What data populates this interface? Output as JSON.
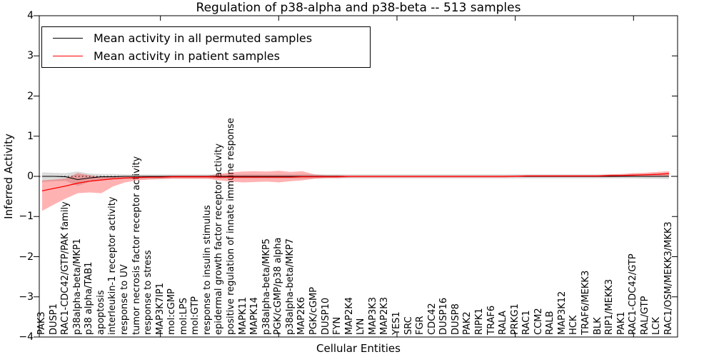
{
  "chart_data": {
    "type": "line",
    "title": "Regulation of p38-alpha and p38-beta -- 513 samples",
    "xlabel": "Cellular Entities",
    "ylabel": "Inferred Activity",
    "ylim": [
      -4,
      4
    ],
    "yticks": [
      4,
      3,
      2,
      1,
      0,
      -1,
      -2,
      -3,
      -4
    ],
    "xtick_indices": [
      10,
      20,
      30,
      40,
      50
    ],
    "grid": false,
    "legend_position": "upper left",
    "zero_line": {
      "y": 0,
      "style": "dotted",
      "color": "#000000"
    },
    "legend": [
      {
        "label": "Mean activity in all permuted samples",
        "color": "#000000"
      },
      {
        "label": "Mean activity in patient samples",
        "color": "#ff0000"
      }
    ],
    "categories": [
      "PAK3",
      "DUSP1",
      "RAC1-CDC42/GTP/PAK family",
      "p38alpha-beta/MKP1",
      "p38 alpha/TAB1",
      "apoptosis",
      "interleukin-1 receptor activity",
      "response to UV",
      "tumor necrosis factor receptor activity",
      "response to stress",
      "MAP3K7IP1",
      "mol:cGMP",
      "mol:LPS",
      "mol:GTP",
      "response to insulin stimulus",
      "epidermal growth factor receptor activity",
      "positive regulation of innate immune response",
      "MAPK11",
      "MAPK14",
      "p38alpha-beta/MKP5",
      "PGK/cGMP/p38 alpha",
      "p38alpha-beta/MKP7",
      "MAP2K6",
      "PGK/cGMP",
      "DUSP10",
      "FYN",
      "MAP2K4",
      "LYN",
      "MAP3K3",
      "MAP2K3",
      "YES1",
      "SRC",
      "FGR",
      "CDC42",
      "DUSP16",
      "DUSP8",
      "PAK2",
      "RIPK1",
      "TRAF6",
      "RALA",
      "PRKG1",
      "RAC1",
      "CCM2",
      "RALB",
      "MAP3K12",
      "HCK",
      "TRAF6/MEKK3",
      "BLK",
      "RIP1/MEKK3",
      "PAK1",
      "RAC1-CDC42/GTP",
      "RAL/GTP",
      "LCK",
      "RAC1/OSM/MEKK3/MKK3"
    ],
    "series": [
      {
        "name": "Mean activity in all permuted samples",
        "color": "#000000",
        "line_width": 1.1,
        "values": [
          0,
          0,
          -0.01,
          -0.08,
          -0.04,
          -0.01,
          -0.01,
          0,
          0,
          0,
          0,
          0,
          0,
          0,
          0,
          0,
          0,
          0,
          0,
          0,
          0,
          0,
          0,
          0,
          0,
          0,
          0,
          0,
          0,
          0,
          0,
          0,
          0,
          0,
          0,
          0,
          0,
          0,
          0,
          0,
          0,
          0,
          0,
          0,
          0,
          0,
          0,
          0,
          0,
          0,
          0,
          0,
          0,
          0
        ],
        "band": {
          "color": "rgba(110,110,110,0.25)",
          "lower": [
            -0.14,
            -0.12,
            -0.11,
            -0.24,
            -0.14,
            -0.09,
            -0.08,
            -0.07,
            -0.06,
            -0.06,
            -0.06,
            -0.05,
            -0.05,
            -0.05,
            -0.05,
            -0.05,
            -0.05,
            -0.05,
            -0.05,
            -0.05,
            -0.05,
            -0.05,
            -0.05,
            -0.05,
            -0.05,
            -0.05,
            -0.05,
            -0.05,
            -0.05,
            -0.05,
            -0.05,
            -0.05,
            -0.05,
            -0.05,
            -0.05,
            -0.05,
            -0.05,
            -0.05,
            -0.05,
            -0.05,
            -0.05,
            -0.05,
            -0.05,
            -0.05,
            -0.05,
            -0.05,
            -0.05,
            -0.05,
            -0.05,
            -0.05,
            -0.05,
            -0.06,
            -0.06,
            -0.07
          ],
          "upper": [
            0.1,
            0.09,
            0.08,
            0.12,
            0.07,
            0.06,
            0.06,
            0.05,
            0.05,
            0.05,
            0.05,
            0.05,
            0.05,
            0.05,
            0.05,
            0.05,
            0.05,
            0.05,
            0.05,
            0.05,
            0.05,
            0.05,
            0.05,
            0.05,
            0.05,
            0.05,
            0.05,
            0.05,
            0.05,
            0.05,
            0.05,
            0.05,
            0.05,
            0.05,
            0.05,
            0.05,
            0.05,
            0.05,
            0.05,
            0.05,
            0.05,
            0.05,
            0.05,
            0.05,
            0.05,
            0.05,
            0.05,
            0.05,
            0.05,
            0.05,
            0.06,
            0.06,
            0.07,
            0.08
          ]
        }
      },
      {
        "name": "Mean activity in patient samples",
        "color": "#ff0000",
        "line_width": 1.3,
        "values": [
          -0.36,
          -0.3,
          -0.24,
          -0.17,
          -0.12,
          -0.09,
          -0.06,
          -0.04,
          -0.03,
          -0.02,
          -0.02,
          -0.01,
          -0.01,
          -0.01,
          -0.01,
          -0.02,
          -0.02,
          -0.02,
          -0.02,
          -0.02,
          -0.02,
          -0.02,
          -0.01,
          -0.01,
          -0.01,
          -0.01,
          0,
          0,
          0,
          0,
          0,
          0,
          0,
          0,
          0,
          0,
          0,
          0,
          0,
          0,
          0,
          0.01,
          0.01,
          0.01,
          0.01,
          0.01,
          0.01,
          0.01,
          0.02,
          0.02,
          0.03,
          0.04,
          0.05,
          0.07
        ],
        "band": {
          "color": "rgba(255,0,0,0.30)",
          "lower": [
            -0.86,
            -0.7,
            -0.55,
            -0.42,
            -0.4,
            -0.42,
            -0.25,
            -0.15,
            -0.1,
            -0.08,
            -0.07,
            -0.06,
            -0.06,
            -0.06,
            -0.06,
            -0.1,
            -0.13,
            -0.15,
            -0.14,
            -0.13,
            -0.15,
            -0.12,
            -0.1,
            -0.06,
            -0.04,
            -0.04,
            -0.03,
            -0.03,
            -0.03,
            -0.03,
            -0.03,
            -0.03,
            -0.03,
            -0.03,
            -0.03,
            -0.03,
            -0.03,
            -0.03,
            -0.03,
            -0.03,
            -0.02,
            -0.02,
            -0.02,
            -0.02,
            -0.02,
            -0.02,
            -0.02,
            -0.02,
            -0.02,
            -0.01,
            -0.01,
            0,
            0,
            0
          ],
          "upper": [
            -0.1,
            -0.08,
            -0.05,
            0.08,
            0.03,
            -0.02,
            -0.01,
            0,
            0.01,
            0.01,
            0.01,
            0.02,
            0.02,
            0.02,
            0.02,
            0.06,
            0.1,
            0.12,
            0.13,
            0.12,
            0.14,
            0.11,
            0.13,
            0.05,
            0.03,
            0.03,
            0.02,
            0.02,
            0.02,
            0.02,
            0.02,
            0.02,
            0.02,
            0.02,
            0.02,
            0.02,
            0.02,
            0.02,
            0.02,
            0.02,
            0.03,
            0.03,
            0.03,
            0.03,
            0.03,
            0.03,
            0.03,
            0.03,
            0.05,
            0.06,
            0.08,
            0.09,
            0.11,
            0.13
          ]
        }
      }
    ]
  }
}
